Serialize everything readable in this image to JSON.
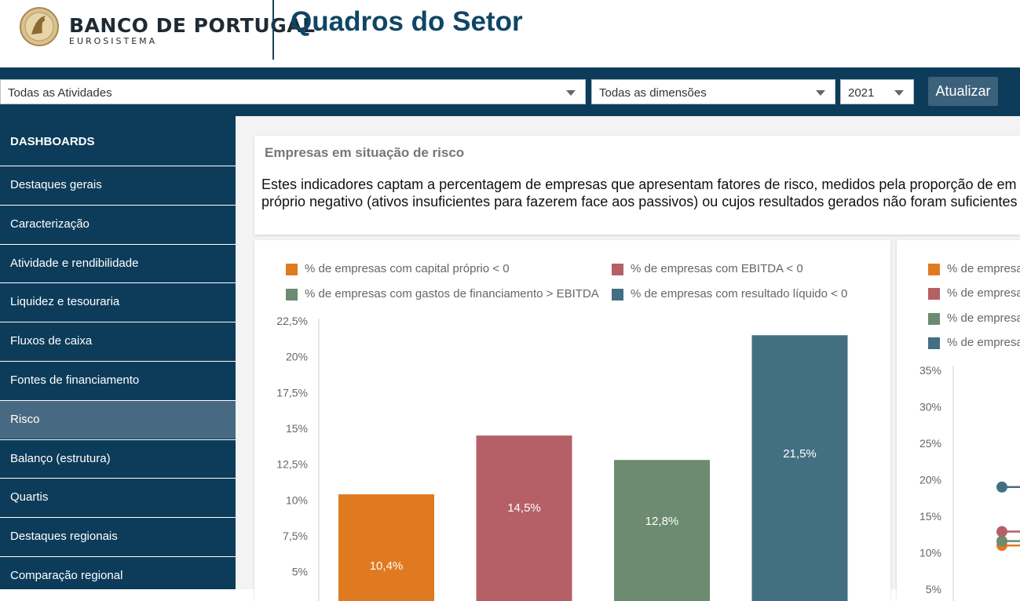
{
  "header": {
    "logo_name": "BANCO DE PORTUGAL",
    "logo_sub": "EUROSISTEMA",
    "title": "Quadros do Setor"
  },
  "filters": {
    "activity": "Todas as Atividades",
    "dimension": "Todas as dimensões",
    "year": "2021",
    "update_label": "Atualizar"
  },
  "sidebar": {
    "heading": "DASHBOARDS",
    "items": [
      {
        "label": "Destaques gerais"
      },
      {
        "label": "Caracterização"
      },
      {
        "label": "Atividade e rendibilidade"
      },
      {
        "label": "Liquidez e tesouraria"
      },
      {
        "label": "Fluxos de caixa"
      },
      {
        "label": "Fontes de financiamento"
      },
      {
        "label": "Risco",
        "active": true
      },
      {
        "label": "Balanço (estrutura)"
      },
      {
        "label": "Quartis"
      },
      {
        "label": "Destaques regionais"
      },
      {
        "label": "Comparação regional"
      }
    ]
  },
  "risk_card": {
    "title": "Empresas em situação de risco",
    "line1": "Estes indicadores captam a percentagem de empresas que apresentam fatores de risco, medidos pela proporção de em",
    "line2": "próprio negativo (ativos insuficientes para fazerem face aos passivos) ou cujos resultados gerados não foram suficientes"
  },
  "colors": {
    "orange": "#e07a20",
    "red": "#b55f66",
    "green": "#6c8b70",
    "blue": "#436f83"
  },
  "chart_data": [
    {
      "type": "bar",
      "title": "",
      "categories": [
        "% de empresas com capital próprio < 0",
        "% de empresas com EBITDA < 0",
        "% de empresas com gastos de financiamento > EBITDA",
        "% de empresas com resultado líquido < 0"
      ],
      "values": [
        10.4,
        14.5,
        12.8,
        21.5
      ],
      "value_labels": [
        "10,4%",
        "14,5%",
        "12,8%",
        "21,5%"
      ],
      "colors": [
        "#e07a20",
        "#b55f66",
        "#6c8b70",
        "#436f83"
      ],
      "y_ticks": [
        5,
        7.5,
        10,
        12.5,
        15,
        17.5,
        20,
        22.5
      ],
      "y_tick_labels": [
        "5%",
        "7,5%",
        "10%",
        "12,5%",
        "15%",
        "17,5%",
        "20%",
        "22,5%"
      ],
      "ylim": [
        0,
        22.5
      ],
      "legend": "top",
      "grid": false
    },
    {
      "type": "line",
      "title": "",
      "legend_labels": [
        "% de empresa",
        "% de empresa",
        "% de empresa",
        "% de empresa"
      ],
      "colors": [
        "#e07a20",
        "#b55f66",
        "#6c8b70",
        "#436f83"
      ],
      "y_ticks": [
        5,
        10,
        15,
        20,
        25,
        30,
        35
      ],
      "y_tick_labels": [
        "5%",
        "10%",
        "15%",
        "20%",
        "25%",
        "30%",
        "35%"
      ],
      "first_point_values": [
        11.0,
        12.9,
        11.6,
        19.0
      ],
      "legend": "top",
      "grid": false
    }
  ]
}
